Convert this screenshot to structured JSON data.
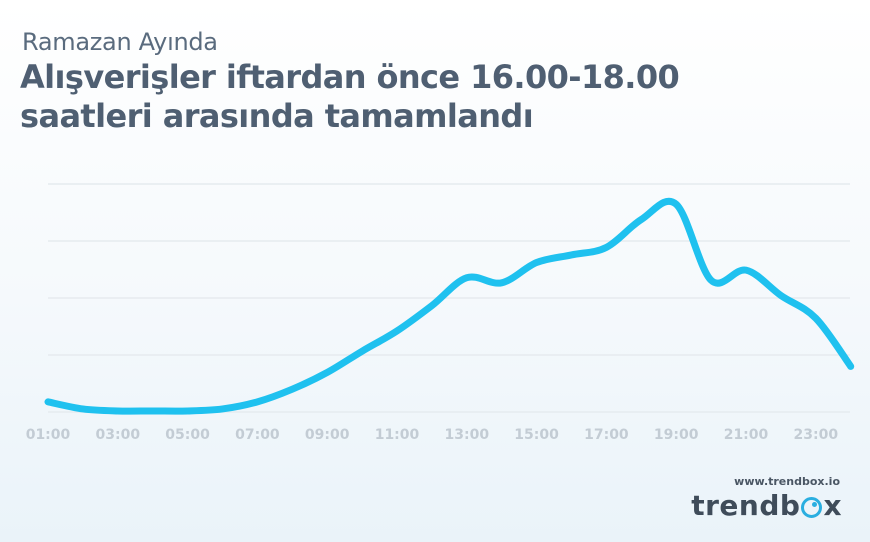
{
  "header": {
    "subtitle": "Ramazan Ayında",
    "title_line1": "Alışverişler iftardan önce 16.00-18.00",
    "title_line2": "saatleri arasında tamamlandı"
  },
  "branding": {
    "url": "www.trendbox.io",
    "logo_prefix": "trendb",
    "logo_suffix": "x",
    "logo_icon": "o-ring-icon",
    "accent_color": "#2aaee0"
  },
  "chart_data": {
    "type": "line",
    "title": "Alışverişler iftardan önce 16.00-18.00 saatleri arasında tamamlandı",
    "subtitle": "Ramazan Ayında",
    "xlabel": "",
    "ylabel": "",
    "y_tick_labels_shown": false,
    "grid": true,
    "legend": "none",
    "x_tick_labels": [
      "01:00",
      "03:00",
      "05:00",
      "07:00",
      "09:00",
      "11:00",
      "13:00",
      "15:00",
      "17:00",
      "19:00",
      "21:00",
      "23:00"
    ],
    "x_hours": [
      1,
      2,
      3,
      4,
      5,
      6,
      7,
      8,
      9,
      10,
      11,
      12,
      13,
      14,
      15,
      16,
      17,
      18,
      19,
      20,
      21,
      22,
      23,
      24
    ],
    "series": [
      {
        "color": "#1fc1ef",
        "values": [
          0.2,
          0.06,
          0.02,
          0.02,
          0.02,
          0.06,
          0.2,
          0.45,
          0.78,
          1.2,
          1.6,
          2.1,
          2.65,
          2.55,
          2.95,
          3.1,
          3.25,
          3.8,
          4.1,
          2.6,
          2.8,
          2.3,
          1.85,
          0.9
        ]
      }
    ],
    "ylim": [
      0,
      4.5
    ]
  }
}
